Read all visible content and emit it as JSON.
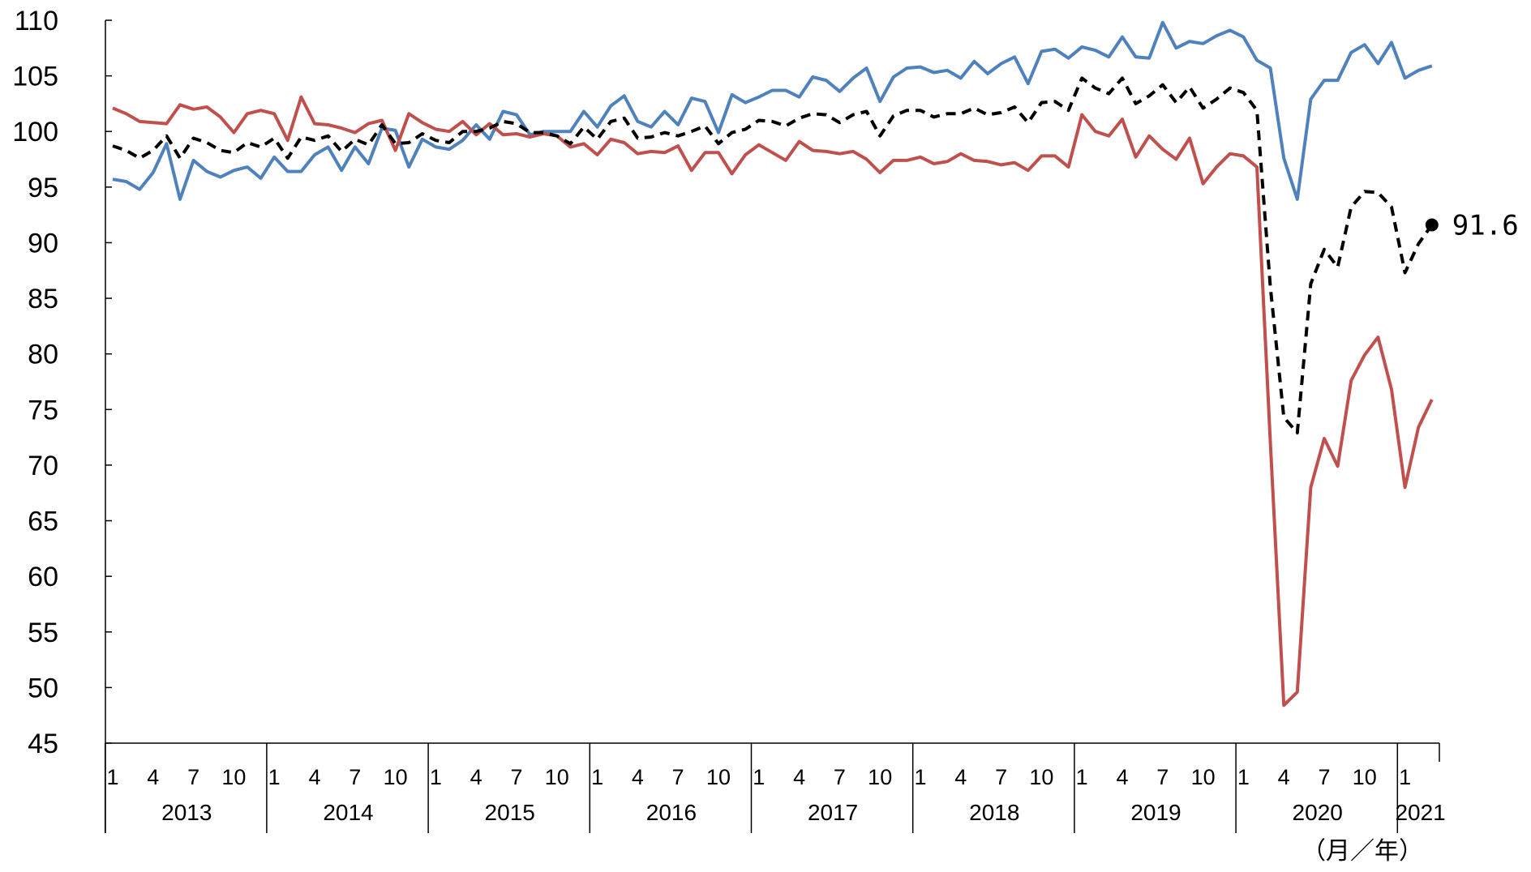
{
  "chart_data": {
    "type": "line",
    "title": "",
    "xlabel": "（月／年）",
    "ylabel": "",
    "ylim": [
      45,
      110
    ],
    "yticks": [
      "110",
      "105",
      "100",
      "95",
      "90",
      "85",
      "80",
      "75",
      "70",
      "65",
      "60",
      "55",
      "50",
      "45"
    ],
    "month_ticks": [
      "1",
      "4",
      "7",
      "10"
    ],
    "years": [
      "2013",
      "2014",
      "2015",
      "2016",
      "2017",
      "2018",
      "2019",
      "2020",
      "2021"
    ],
    "start": "2013-01",
    "end": "2021-03",
    "end_label": "91.6",
    "grid": false,
    "legend": "none",
    "series": [
      {
        "color": "#4F81BD",
        "style": "solid",
        "values": [
          95.7,
          95.5,
          94.8,
          96.3,
          98.9,
          93.9,
          97.4,
          96.4,
          95.9,
          96.5,
          96.8,
          95.8,
          97.7,
          96.4,
          96.4,
          97.9,
          98.6,
          96.5,
          98.6,
          97.1,
          100.3,
          100.1,
          96.8,
          99.3,
          98.6,
          98.4,
          99.2,
          100.6,
          99.3,
          101.8,
          101.5,
          99.7,
          100.0,
          100.0,
          100.0,
          101.8,
          100.4,
          102.3,
          103.2,
          100.9,
          100.4,
          101.8,
          100.6,
          103.0,
          102.7,
          99.9,
          103.3,
          102.6,
          103.1,
          103.7,
          103.7,
          103.1,
          104.9,
          104.6,
          103.6,
          104.8,
          105.7,
          102.7,
          104.9,
          105.7,
          105.8,
          105.3,
          105.5,
          104.8,
          106.3,
          105.2,
          106.1,
          106.7,
          104.3,
          107.2,
          107.4,
          106.6,
          107.6,
          107.3,
          106.7,
          108.5,
          106.7,
          106.6,
          109.8,
          107.5,
          108.1,
          107.9,
          108.6,
          109.1,
          108.5,
          106.4,
          105.7,
          97.6,
          93.9,
          102.9,
          104.6,
          104.6,
          107.1,
          107.8,
          106.1,
          108.0,
          104.8,
          105.5,
          105.9
        ]
      },
      {
        "color": "#C0504D",
        "style": "solid",
        "values": [
          102.1,
          101.6,
          100.9,
          100.8,
          100.7,
          102.4,
          102.0,
          102.2,
          101.3,
          99.9,
          101.6,
          101.9,
          101.6,
          99.2,
          103.1,
          100.7,
          100.6,
          100.3,
          99.9,
          100.7,
          101.0,
          98.3,
          101.6,
          100.8,
          100.2,
          100.0,
          100.9,
          99.7,
          100.7,
          99.7,
          99.8,
          99.5,
          99.8,
          99.6,
          98.6,
          98.9,
          97.9,
          99.3,
          99.0,
          98.0,
          98.2,
          98.1,
          98.7,
          96.5,
          98.1,
          98.1,
          96.2,
          97.9,
          98.8,
          98.1,
          97.4,
          99.1,
          98.3,
          98.2,
          98.0,
          98.2,
          97.5,
          96.3,
          97.4,
          97.4,
          97.7,
          97.1,
          97.3,
          98.0,
          97.4,
          97.3,
          97.0,
          97.2,
          96.5,
          97.8,
          97.8,
          96.8,
          101.5,
          100.0,
          99.6,
          101.1,
          97.7,
          99.6,
          98.4,
          97.5,
          99.4,
          95.3,
          96.8,
          98.0,
          97.8,
          96.8,
          72.0,
          48.4,
          49.6,
          68.0,
          72.4,
          69.9,
          77.6,
          79.9,
          81.5,
          76.8,
          68.0,
          73.4,
          75.9
        ]
      },
      {
        "color": "#000000",
        "style": "dashed",
        "values": [
          98.7,
          98.3,
          97.6,
          98.3,
          99.6,
          97.6,
          99.4,
          99.0,
          98.3,
          98.1,
          99.0,
          98.6,
          99.4,
          97.6,
          99.5,
          99.2,
          99.6,
          98.2,
          99.3,
          98.8,
          100.6,
          98.9,
          99.0,
          99.8,
          99.2,
          99.0,
          100.0,
          100.0,
          100.3,
          100.9,
          100.7,
          99.9,
          99.9,
          99.6,
          98.9,
          100.4,
          99.3,
          100.9,
          101.2,
          99.4,
          99.5,
          99.9,
          99.6,
          100.0,
          100.5,
          98.9,
          99.9,
          100.2,
          101.0,
          100.9,
          100.5,
          101.2,
          101.6,
          101.5,
          100.8,
          101.5,
          101.8,
          99.6,
          101.4,
          101.9,
          101.9,
          101.3,
          101.6,
          101.6,
          102.1,
          101.5,
          101.7,
          102.2,
          100.8,
          102.6,
          102.7,
          101.9,
          104.8,
          103.9,
          103.4,
          104.8,
          102.5,
          103.2,
          104.2,
          102.6,
          104.0,
          102.1,
          102.9,
          103.9,
          103.5,
          101.9,
          86.0,
          74.3,
          72.9,
          86.3,
          89.4,
          87.8,
          93.2,
          94.6,
          94.5,
          93.2,
          87.3,
          89.9,
          91.6
        ]
      }
    ]
  }
}
